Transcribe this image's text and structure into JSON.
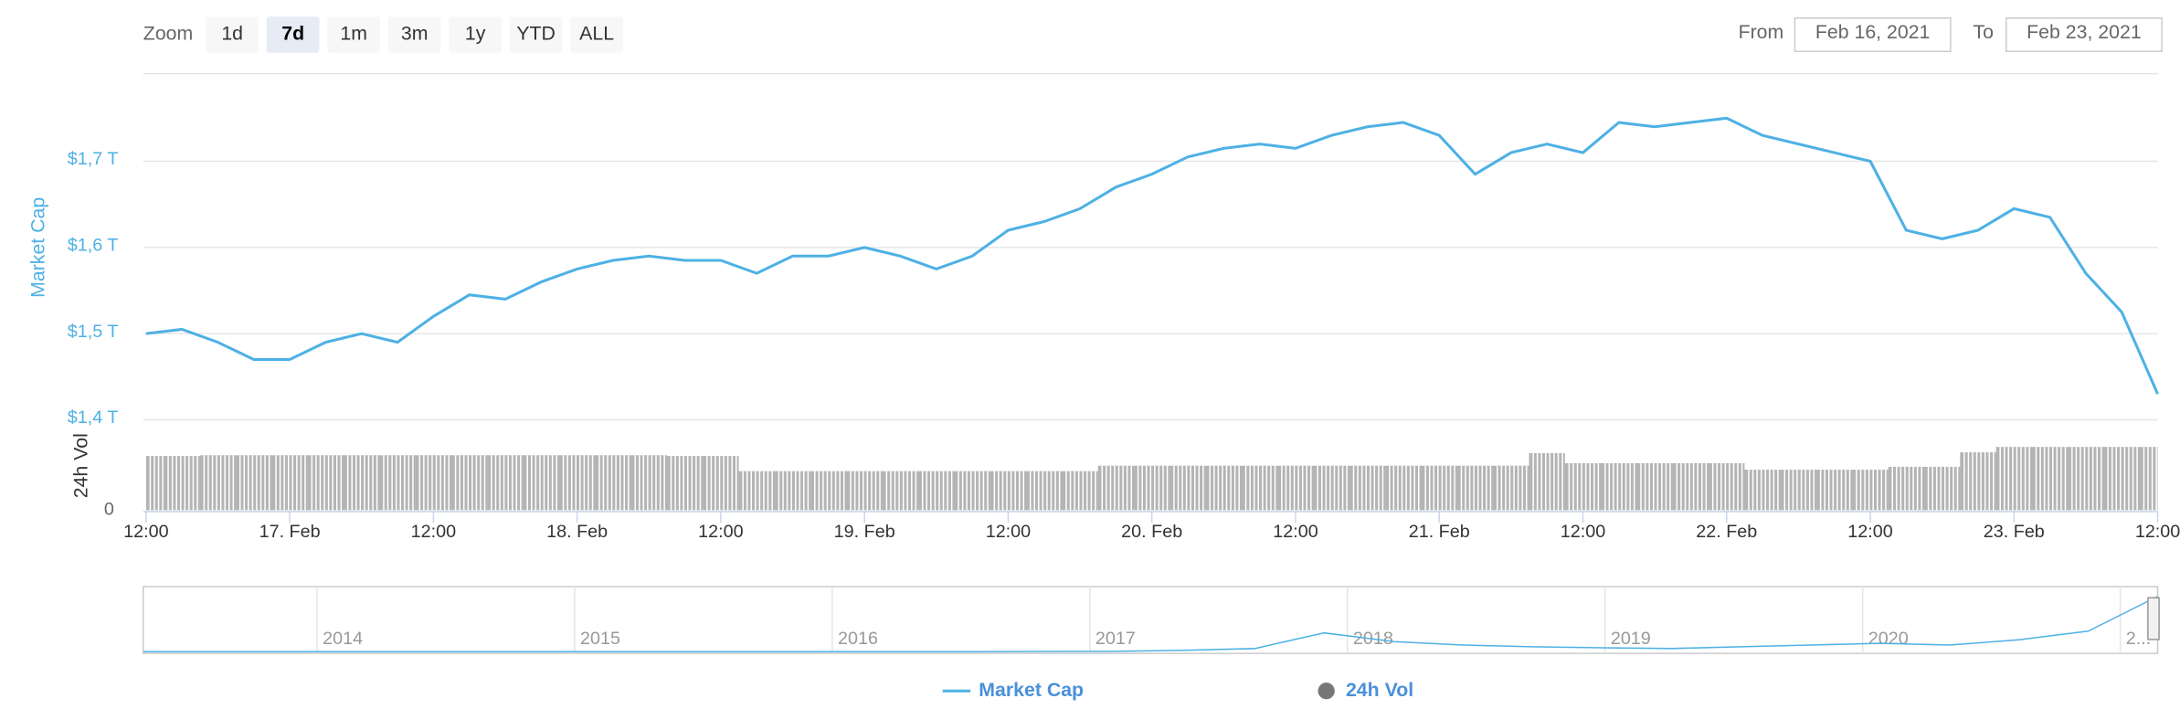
{
  "range_selector": {
    "label": "Zoom",
    "buttons": [
      "1d",
      "7d",
      "1m",
      "3m",
      "1y",
      "YTD",
      "ALL"
    ],
    "selected": 1,
    "from_label": "From",
    "from": "Feb 16, 2021",
    "to_label": "To",
    "to": "Feb 23, 2021"
  },
  "chart_data": {
    "type": "line",
    "x": [
      "16. Feb 12:00",
      "16. Feb 15:00",
      "16. Feb 18:00",
      "16. Feb 21:00",
      "17. Feb 00:00",
      "17. Feb 03:00",
      "17. Feb 06:00",
      "17. Feb 09:00",
      "17. Feb 12:00",
      "17. Feb 15:00",
      "17. Feb 18:00",
      "17. Feb 21:00",
      "18. Feb 00:00",
      "18. Feb 03:00",
      "18. Feb 06:00",
      "18. Feb 09:00",
      "18. Feb 12:00",
      "18. Feb 15:00",
      "18. Feb 18:00",
      "18. Feb 21:00",
      "19. Feb 00:00",
      "19. Feb 03:00",
      "19. Feb 06:00",
      "19. Feb 09:00",
      "19. Feb 12:00",
      "19. Feb 15:00",
      "19. Feb 18:00",
      "19. Feb 21:00",
      "20. Feb 00:00",
      "20. Feb 03:00",
      "20. Feb 06:00",
      "20. Feb 09:00",
      "20. Feb 12:00",
      "20. Feb 15:00",
      "20. Feb 18:00",
      "20. Feb 21:00",
      "21. Feb 00:00",
      "21. Feb 03:00",
      "21. Feb 06:00",
      "21. Feb 09:00",
      "21. Feb 12:00",
      "21. Feb 15:00",
      "21. Feb 18:00",
      "21. Feb 21:00",
      "22. Feb 00:00",
      "22. Feb 03:00",
      "22. Feb 06:00",
      "22. Feb 09:00",
      "22. Feb 12:00",
      "22. Feb 15:00",
      "22. Feb 18:00",
      "22. Feb 21:00",
      "23. Feb 00:00",
      "23. Feb 03:00",
      "23. Feb 06:00",
      "23. Feb 09:00",
      "23. Feb 12:00"
    ],
    "xticks": [
      {
        "value": "16. Feb 12:00",
        "label": "12:00"
      },
      {
        "value": "17. Feb 00:00",
        "label": "17. Feb"
      },
      {
        "value": "17. Feb 12:00",
        "label": "12:00"
      },
      {
        "value": "18. Feb 00:00",
        "label": "18. Feb"
      },
      {
        "value": "18. Feb 12:00",
        "label": "12:00"
      },
      {
        "value": "19. Feb 00:00",
        "label": "19. Feb"
      },
      {
        "value": "19. Feb 12:00",
        "label": "12:00"
      },
      {
        "value": "20. Feb 00:00",
        "label": "20. Feb"
      },
      {
        "value": "20. Feb 12:00",
        "label": "12:00"
      },
      {
        "value": "21. Feb 00:00",
        "label": "21. Feb"
      },
      {
        "value": "21. Feb 12:00",
        "label": "12:00"
      },
      {
        "value": "22. Feb 00:00",
        "label": "22. Feb"
      },
      {
        "value": "22. Feb 12:00",
        "label": "12:00"
      },
      {
        "value": "23. Feb 00:00",
        "label": "23. Feb"
      },
      {
        "value": "23. Feb 12:00",
        "label": "12:00"
      }
    ],
    "y_label": "Market Cap",
    "ylim": [
      1.4,
      1.8
    ],
    "yticks": [
      {
        "value": 1.4,
        "label": "$1,4 T"
      },
      {
        "value": 1.5,
        "label": "$1,5 T"
      },
      {
        "value": 1.6,
        "label": "$1,6 T"
      },
      {
        "value": 1.7,
        "label": "$1,7 T"
      }
    ],
    "y2_label": "24h Vol",
    "y2lim": [
      0,
      250
    ],
    "y2ticks": [
      0
    ],
    "grid": true,
    "series": [
      {
        "name": "Market Cap",
        "color": "#4eb1e4",
        "values": [
          1.5,
          1.505,
          1.49,
          1.47,
          1.47,
          1.49,
          1.5,
          1.49,
          1.52,
          1.545,
          1.54,
          1.56,
          1.575,
          1.585,
          1.59,
          1.585,
          1.585,
          1.57,
          1.59,
          1.59,
          1.6,
          1.59,
          1.575,
          1.59,
          1.62,
          1.63,
          1.645,
          1.67,
          1.685,
          1.705,
          1.715,
          1.72,
          1.715,
          1.73,
          1.74,
          1.745,
          1.73,
          1.685,
          1.71,
          1.72,
          1.71,
          1.745,
          1.74,
          1.745,
          1.75,
          1.73,
          1.72,
          1.71,
          1.7,
          1.62,
          1.61,
          1.62,
          1.645,
          1.635,
          1.57,
          1.525,
          1.43
        ]
      },
      {
        "name": "24h Vol",
        "color": "#777777",
        "type": "bar",
        "axis": "y2",
        "values": [
          150,
          150,
          152,
          152,
          152,
          152,
          152,
          152,
          152,
          152,
          152,
          152,
          152,
          152,
          152,
          150,
          150,
          108,
          108,
          108,
          108,
          108,
          108,
          108,
          108,
          108,
          108,
          123,
          123,
          123,
          123,
          123,
          123,
          123,
          123,
          123,
          123,
          123,
          123,
          158,
          130,
          130,
          130,
          130,
          130,
          112,
          112,
          112,
          112,
          120,
          120,
          160,
          175,
          175,
          175,
          175,
          175
        ]
      }
    ],
    "legend": "bottom",
    "navigator": {
      "color": "#4eb1e4",
      "xticks": [
        "2014",
        "2015",
        "2016",
        "2017",
        "2018",
        "2019",
        "2020",
        "2..."
      ],
      "ylim": [
        0,
        1.8
      ],
      "values": [
        0.01,
        0.01,
        0.01,
        0.01,
        0.01,
        0.01,
        0.01,
        0.01,
        0.01,
        0.01,
        0.01,
        0.01,
        0.01,
        0.015,
        0.02,
        0.05,
        0.1,
        0.55,
        0.3,
        0.2,
        0.15,
        0.12,
        0.1,
        0.15,
        0.2,
        0.25,
        0.2,
        0.35,
        0.6,
        1.6
      ]
    }
  }
}
